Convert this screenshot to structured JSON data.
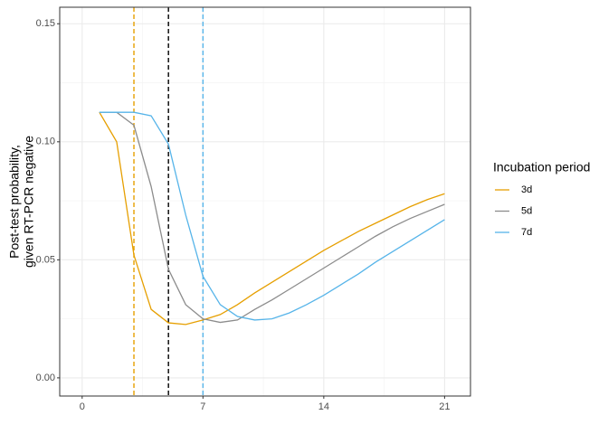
{
  "chart_data": {
    "type": "line",
    "ylabel": [
      "Post-test probability,",
      "given RT-PCR negative"
    ],
    "legend_title": "Incubation period",
    "legend_position": "right",
    "grid": true,
    "x": [
      1,
      2,
      3,
      4,
      5,
      6,
      7,
      8,
      9,
      10,
      11,
      12,
      13,
      14,
      15,
      16,
      17,
      18,
      19,
      20,
      21
    ],
    "series": [
      {
        "name": "3d",
        "color": "#E69F00",
        "values": [
          0.1125,
          0.1,
          0.052,
          0.029,
          0.0233,
          0.0226,
          0.0245,
          0.0268,
          0.031,
          0.036,
          0.0405,
          0.045,
          0.0495,
          0.054,
          0.058,
          0.062,
          0.0655,
          0.069,
          0.0725,
          0.0755,
          0.078
        ]
      },
      {
        "name": "5d",
        "color": "#8C8C8C",
        "values": [
          0.1125,
          0.1125,
          0.107,
          0.081,
          0.046,
          0.031,
          0.025,
          0.0235,
          0.0245,
          0.029,
          0.033,
          0.0375,
          0.042,
          0.0465,
          0.051,
          0.0555,
          0.06,
          0.064,
          0.0675,
          0.0705,
          0.0735
        ]
      },
      {
        "name": "7d",
        "color": "#56B4E9",
        "values": [
          0.1125,
          0.1125,
          0.1125,
          0.111,
          0.099,
          0.069,
          0.043,
          0.031,
          0.026,
          0.0245,
          0.025,
          0.0275,
          0.031,
          0.035,
          0.0395,
          0.044,
          0.049,
          0.0535,
          0.058,
          0.0625,
          0.067
        ]
      }
    ],
    "vlines": [
      {
        "x": 3,
        "color": "#E69F00"
      },
      {
        "x": 5,
        "color": "#000000"
      },
      {
        "x": 7,
        "color": "#56B4E9"
      }
    ],
    "xlim": [
      -1.3,
      22.5
    ],
    "xticks": [
      0,
      7,
      14,
      21
    ],
    "ylim": [
      -0.0077,
      0.157
    ],
    "yticks": [
      {
        "value": 0,
        "label": "0.00"
      },
      {
        "value": 0.05,
        "label": "0.05"
      },
      {
        "value": 0.1,
        "label": "0.10"
      },
      {
        "value": 0.15,
        "label": "0.15"
      }
    ]
  }
}
